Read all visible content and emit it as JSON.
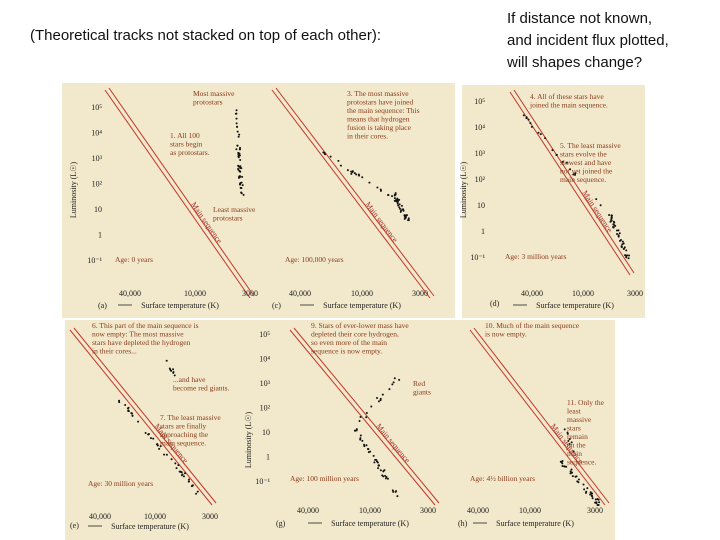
{
  "heading": "(Theoretical tracks not stacked on top of each other):",
  "question": [
    "If distance not known,",
    "and incident flux plotted,",
    "will shapes change?"
  ],
  "panels": [
    {
      "label": "(a)",
      "notes": [
        [
          "Most massive",
          "protostars"
        ],
        [
          "1. All 100",
          "stars begin",
          "as protostars."
        ],
        [
          "Least massive",
          "protostars"
        ]
      ],
      "main_sequence": "Main sequence",
      "age": "Age: 0 years",
      "y_axis": "Luminosity (L☉)",
      "y_ticks": [
        "10⁵",
        "10⁴",
        "10³",
        "10²",
        "10",
        "1",
        "10⁻¹"
      ],
      "x_ticks": [
        "40,000",
        "10,000",
        "3000"
      ],
      "x_axis": "Surface temperature (K)"
    },
    {
      "label": "(c)",
      "notes": [
        [
          "3. The most massive",
          "protostars have joined",
          "the main sequence: This",
          "means that hydrogen",
          "fusion is taking place",
          "in their cores."
        ]
      ],
      "main_sequence": "Main sequence",
      "age": "Age: 100,000 years",
      "x_ticks": [
        "40,000",
        "10,000",
        "3000"
      ],
      "x_axis": "Surface temperature (K)"
    },
    {
      "label": "(d)",
      "notes": [
        [
          "4. All of these stars have",
          "joined the main sequence."
        ],
        [
          "5. The least massive",
          "stars evolve the",
          "slowest and have",
          "not yet joined the",
          "main sequence."
        ]
      ],
      "main_sequence": "Main sequence",
      "age": "Age: 3 million years",
      "y_axis": "Luminosity (L☉)",
      "y_ticks": [
        "10⁵",
        "10⁴",
        "10³",
        "10²",
        "10",
        "1",
        "10⁻¹"
      ],
      "x_ticks": [
        "40,000",
        "10,000",
        "3000"
      ],
      "x_axis": "Surface temperature (K)"
    },
    {
      "label": "(e)",
      "notes": [
        [
          "6. This part of the main sequence is",
          "now empty: The most massive",
          "stars have depleted the hydrogen",
          "in their cores..."
        ],
        [
          "...and have",
          "become red giants."
        ],
        [
          "7. The least massive",
          "stars are finally",
          "approaching the",
          "main sequence."
        ]
      ],
      "main_sequence": "Main sequence",
      "age": "Age: 30 million years",
      "x_ticks": [
        "40,000",
        "10,000",
        "3000"
      ],
      "x_axis": "Surface temperature (K)"
    },
    {
      "label": "(g)",
      "notes": [
        [
          "9. Stars of ever-lower mass have",
          "depleted their core hydrogen,",
          "so even more of the main",
          "sequence is now empty."
        ],
        [
          "Red",
          "giants"
        ]
      ],
      "main_sequence": "Main sequence",
      "age": "Age: 100 million years",
      "y_axis": "Luminosity (L☉)",
      "y_ticks": [
        "10⁵",
        "10⁴",
        "10³",
        "10²",
        "10",
        "1",
        "10⁻¹"
      ],
      "x_ticks": [
        "40,000",
        "10,000",
        "3000"
      ],
      "x_axis": "Surface temperature (K)"
    },
    {
      "label": "(h)",
      "notes": [
        [
          "10. Much of the main sequence",
          "is now empty."
        ],
        [
          "11. Only the",
          "least",
          "massive",
          "stars",
          "remain",
          "on the",
          "main",
          "sequence."
        ]
      ],
      "main_sequence": "Main sequence",
      "age": "Age: 4½ billion years",
      "x_ticks": [
        "40,000",
        "10,000",
        "3000"
      ],
      "x_axis": "Surface temperature (K)"
    }
  ]
}
